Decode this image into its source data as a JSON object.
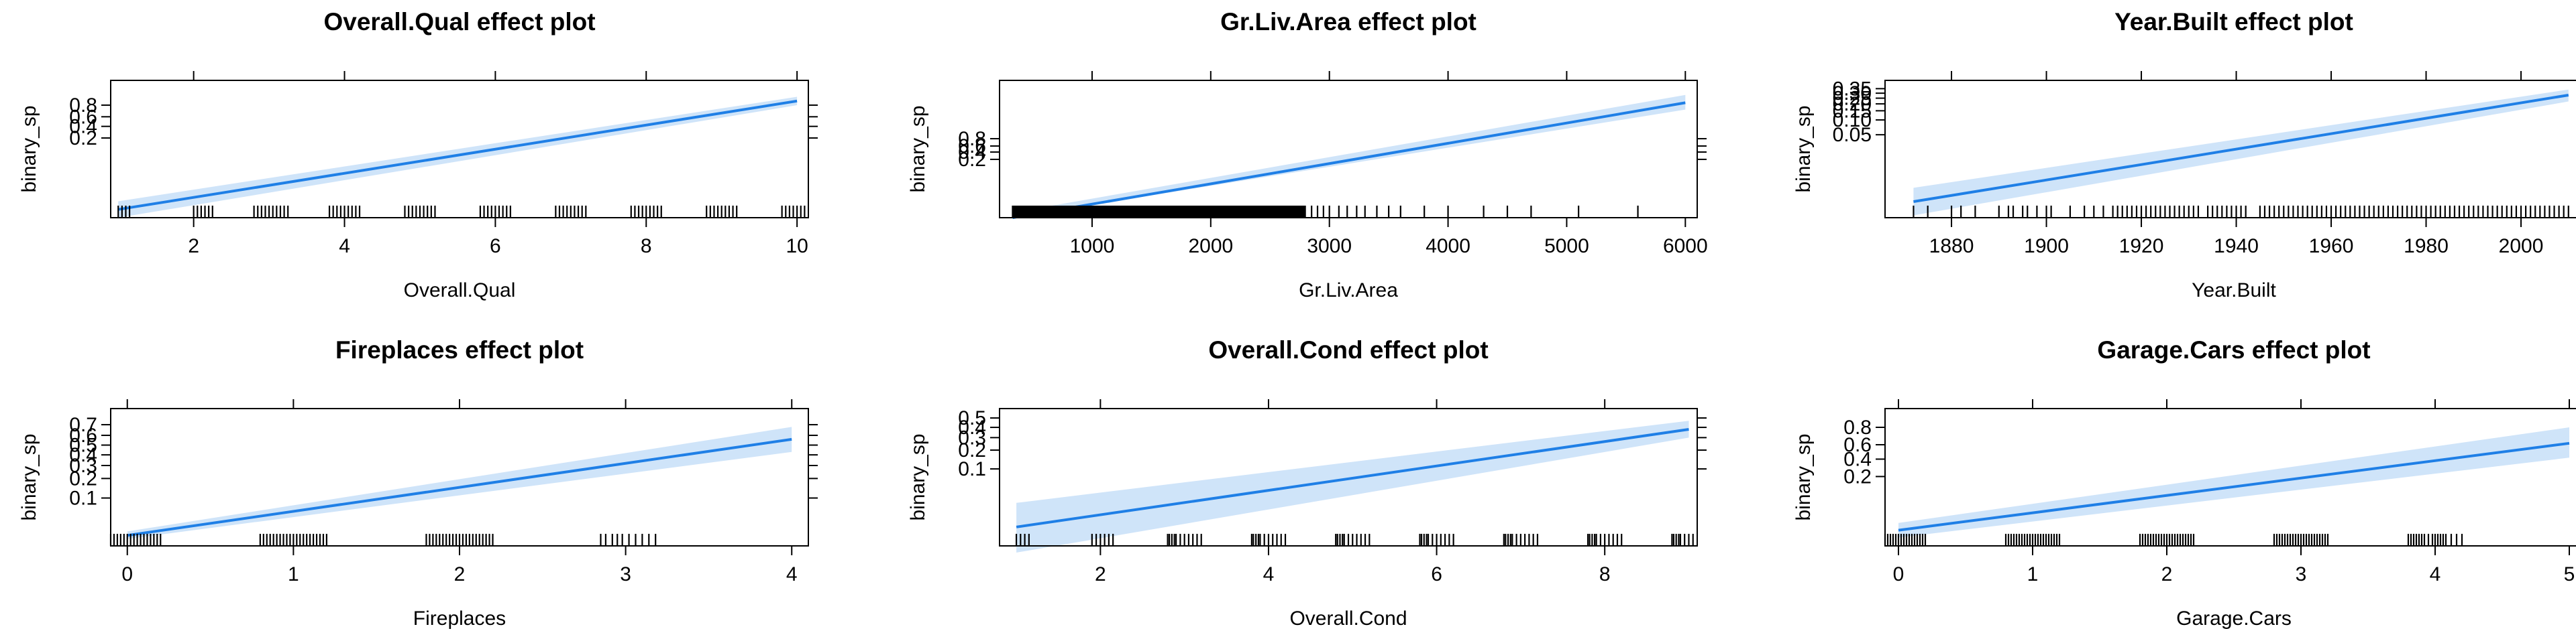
{
  "figure": {
    "line_color": "#1f7fe6",
    "band_color": "#cfe4f9",
    "rug_color": "#000000",
    "y_axis_label": "binary_sp"
  },
  "chart_data": [
    {
      "type": "line",
      "title": "Overall.Qual effect plot",
      "xlabel": "Overall.Qual",
      "ylabel": "binary_sp",
      "xlim": [
        0.9,
        10.15
      ],
      "x_ticks": [
        2,
        4,
        6,
        8,
        10
      ],
      "x_tick_labels": [
        "2",
        "4",
        "6",
        "8",
        "10"
      ],
      "y_scale": "logit",
      "ylim": [
        0.0003,
        0.97
      ],
      "y_ticks": [
        0.2,
        0.4,
        0.6,
        0.8
      ],
      "y_tick_labels": [
        "0.2",
        "0.4",
        "0.6",
        "0.8"
      ],
      "fit": {
        "x": [
          1,
          10
        ],
        "y": [
          0.0006,
          0.85
        ]
      },
      "band": {
        "x": [
          1,
          10
        ],
        "lower": [
          0.0003,
          0.8
        ],
        "upper": [
          0.0012,
          0.89
        ]
      },
      "rug": [
        1.0,
        1.05,
        1.1,
        1.15,
        2.0,
        2.05,
        2.1,
        2.15,
        2.2,
        2.25,
        2.8,
        2.85,
        2.9,
        2.95,
        3.0,
        3.05,
        3.1,
        3.15,
        3.2,
        3.25,
        3.8,
        3.85,
        3.9,
        3.95,
        4.0,
        4.05,
        4.1,
        4.15,
        4.2,
        4.8,
        4.85,
        4.9,
        4.95,
        5.0,
        5.05,
        5.1,
        5.15,
        5.2,
        5.8,
        5.85,
        5.9,
        5.95,
        6.0,
        6.05,
        6.1,
        6.15,
        6.2,
        6.8,
        6.85,
        6.9,
        6.95,
        7.0,
        7.05,
        7.1,
        7.15,
        7.2,
        7.8,
        7.85,
        7.9,
        7.95,
        8.0,
        8.05,
        8.1,
        8.15,
        8.2,
        8.8,
        8.85,
        8.9,
        8.95,
        9.0,
        9.05,
        9.1,
        9.15,
        9.2,
        9.8,
        9.85,
        9.9,
        9.95,
        10.0,
        10.05,
        10.1
      ]
    },
    {
      "type": "line",
      "title": "Gr.Liv.Area effect plot",
      "xlabel": "Gr.Liv.Area",
      "ylabel": "binary_sp",
      "xlim": [
        220,
        6100
      ],
      "x_ticks": [
        1000,
        2000,
        3000,
        4000,
        5000,
        6000
      ],
      "x_tick_labels": [
        "1000",
        "2000",
        "3000",
        "4000",
        "5000",
        "6000"
      ],
      "y_scale": "logit",
      "ylim": [
        0.0001,
        0.9999
      ],
      "y_ticks": [
        0.2,
        0.4,
        0.6,
        0.8
      ],
      "y_tick_labels": [
        "0.2",
        "0.4",
        "0.6",
        "0.8"
      ],
      "fit": {
        "x": [
          330,
          6000
        ],
        "y": [
          0.0001,
          0.998
        ]
      },
      "band": {
        "x": [
          330,
          6000
        ],
        "lower": [
          0.0001,
          0.995
        ],
        "upper": [
          0.0002,
          0.9993
        ]
      },
      "rug_ranges": [
        [
          330,
          2800,
          6
        ]
      ],
      "rug": [
        2850,
        2900,
        2950,
        3000,
        3080,
        3150,
        3230,
        3300,
        3400,
        3500,
        3600,
        3800,
        4000,
        4300,
        4500,
        4700,
        5100,
        5600
      ]
    },
    {
      "type": "line",
      "title": "Year.Built effect plot",
      "xlabel": "Year.Built",
      "ylabel": "binary_sp",
      "xlim": [
        1866,
        2013
      ],
      "x_ticks": [
        1880,
        1900,
        1920,
        1940,
        1960,
        1980,
        2000
      ],
      "x_tick_labels": [
        "1880",
        "1900",
        "1920",
        "1940",
        "1960",
        "1980",
        "2000"
      ],
      "y_scale": "logit",
      "ylim": [
        0.0008,
        0.45
      ],
      "y_ticks": [
        0.05,
        0.1,
        0.15,
        0.2,
        0.25,
        0.3,
        0.35
      ],
      "y_tick_labels": [
        "0.05",
        "0.10",
        "0.15",
        "0.20",
        "0.25",
        "0.30",
        "0.35"
      ],
      "fit": {
        "x": [
          1872,
          2010
        ],
        "y": [
          0.0018,
          0.28
        ]
      },
      "band": {
        "x": [
          1872,
          2010
        ],
        "lower": [
          0.0009,
          0.22
        ],
        "upper": [
          0.0036,
          0.34
        ]
      },
      "rug": [
        1872,
        1875,
        1880,
        1882,
        1885,
        1890,
        1892,
        1893,
        1895,
        1896,
        1898,
        1900,
        1901,
        1905,
        1908,
        1910,
        1912,
        1914,
        1915,
        1916,
        1917,
        1918,
        1919,
        1920,
        1921,
        1922,
        1923,
        1924,
        1925,
        1926,
        1927,
        1928,
        1929,
        1930,
        1931,
        1932,
        1934,
        1935,
        1936,
        1937,
        1938,
        1939,
        1940,
        1941,
        1942,
        1945,
        1946,
        1947,
        1948,
        1949,
        1950,
        1951,
        1952,
        1953,
        1954,
        1955,
        1956,
        1957,
        1958,
        1959,
        1960,
        1961,
        1962,
        1963,
        1964,
        1965,
        1966,
        1967,
        1968,
        1969,
        1970,
        1971,
        1972,
        1973,
        1974,
        1975,
        1976,
        1977,
        1978,
        1979,
        1980,
        1981,
        1982,
        1983,
        1984,
        1985,
        1986,
        1987,
        1988,
        1989,
        1990,
        1991,
        1992,
        1993,
        1994,
        1995,
        1996,
        1997,
        1998,
        1999,
        2000,
        2001,
        2002,
        2003,
        2004,
        2005,
        2006,
        2007,
        2008,
        2009,
        2010
      ]
    },
    {
      "type": "line",
      "title": "Fireplaces effect plot",
      "xlabel": "Fireplaces",
      "ylabel": "binary_sp",
      "xlim": [
        -0.1,
        4.1
      ],
      "x_ticks": [
        0,
        1,
        2,
        3,
        4
      ],
      "x_tick_labels": [
        "0",
        "1",
        "2",
        "3",
        "4"
      ],
      "y_scale": "logit",
      "ylim": [
        0.015,
        0.82
      ],
      "y_ticks": [
        0.1,
        0.2,
        0.3,
        0.4,
        0.5,
        0.6,
        0.7
      ],
      "y_tick_labels": [
        "0.1",
        "0.2",
        "0.3",
        "0.4",
        "0.5",
        "0.6",
        "0.7"
      ],
      "fit": {
        "x": [
          0,
          4
        ],
        "y": [
          0.023,
          0.56
        ]
      },
      "band": {
        "x": [
          0,
          4
        ],
        "lower": [
          0.02,
          0.43
        ],
        "upper": [
          0.027,
          0.68
        ]
      },
      "rug": [
        -0.1,
        -0.08,
        -0.06,
        -0.04,
        -0.02,
        0.0,
        0.02,
        0.04,
        0.06,
        0.08,
        0.1,
        0.12,
        0.14,
        0.16,
        0.18,
        0.2,
        0.8,
        0.82,
        0.84,
        0.86,
        0.88,
        0.9,
        0.92,
        0.94,
        0.96,
        0.98,
        1.0,
        1.02,
        1.04,
        1.06,
        1.08,
        1.1,
        1.12,
        1.14,
        1.16,
        1.18,
        1.2,
        1.8,
        1.82,
        1.84,
        1.86,
        1.88,
        1.9,
        1.92,
        1.94,
        1.96,
        1.98,
        2.0,
        2.02,
        2.04,
        2.06,
        2.08,
        2.1,
        2.12,
        2.14,
        2.16,
        2.18,
        2.2,
        2.85,
        2.88,
        2.92,
        2.95,
        2.98,
        3.02,
        3.06,
        3.1,
        3.14,
        3.18
      ]
    },
    {
      "type": "line",
      "title": "Overall.Cond effect plot",
      "xlabel": "Overall.Cond",
      "ylabel": "binary_sp",
      "xlim": [
        0.8,
        9.1
      ],
      "x_ticks": [
        2,
        4,
        6,
        8
      ],
      "x_tick_labels": [
        "2",
        "4",
        "6",
        "8"
      ],
      "y_scale": "logit",
      "ylim": [
        0.004,
        0.6
      ],
      "y_ticks": [
        0.1,
        0.2,
        0.3,
        0.4,
        0.5
      ],
      "y_tick_labels": [
        "0.1",
        "0.2",
        "0.3",
        "0.4",
        "0.5"
      ],
      "fit": {
        "x": [
          1,
          9
        ],
        "y": [
          0.009,
          0.38
        ]
      },
      "band": {
        "x": [
          1,
          9
        ],
        "lower": [
          0.003,
          0.3
        ],
        "upper": [
          0.025,
          0.47
        ]
      },
      "rug": [
        1.0,
        1.05,
        1.1,
        1.15,
        1.9,
        1.95,
        2.0,
        2.05,
        2.1,
        2.15,
        2.8,
        2.82,
        2.85,
        2.88,
        2.9,
        2.95,
        3.0,
        3.05,
        3.1,
        3.15,
        3.2,
        3.8,
        3.82,
        3.85,
        3.88,
        3.9,
        3.95,
        4.0,
        4.05,
        4.1,
        4.15,
        4.2,
        4.8,
        4.82,
        4.85,
        4.88,
        4.9,
        4.95,
        5.0,
        5.05,
        5.1,
        5.15,
        5.2,
        5.8,
        5.82,
        5.85,
        5.88,
        5.9,
        5.95,
        6.0,
        6.05,
        6.1,
        6.15,
        6.2,
        6.8,
        6.82,
        6.85,
        6.88,
        6.9,
        6.95,
        7.0,
        7.05,
        7.1,
        7.15,
        7.2,
        7.8,
        7.82,
        7.85,
        7.88,
        7.9,
        7.95,
        8.0,
        8.05,
        8.1,
        8.15,
        8.2,
        8.8,
        8.82,
        8.85,
        8.88,
        8.9,
        8.95,
        9.0,
        9.05
      ]
    },
    {
      "type": "line",
      "title": "Garage.Cars effect plot",
      "xlabel": "Garage.Cars",
      "ylabel": "binary_sp",
      "xlim": [
        -0.1,
        5.1
      ],
      "x_ticks": [
        0,
        1,
        2,
        3,
        4,
        5
      ],
      "x_tick_labels": [
        "0",
        "1",
        "2",
        "3",
        "4",
        "5"
      ],
      "y_scale": "logit",
      "ylim": [
        0.005,
        0.92
      ],
      "y_ticks": [
        0.2,
        0.4,
        0.6,
        0.8
      ],
      "y_tick_labels": [
        "0.2",
        "0.4",
        "0.6",
        "0.8"
      ],
      "fit": {
        "x": [
          0,
          5
        ],
        "y": [
          0.012,
          0.62
        ]
      },
      "band": {
        "x": [
          0,
          5
        ],
        "lower": [
          0.008,
          0.42
        ],
        "upper": [
          0.018,
          0.8
        ]
      },
      "rug": [
        -0.1,
        -0.08,
        -0.06,
        -0.04,
        -0.02,
        0.0,
        0.02,
        0.04,
        0.06,
        0.08,
        0.1,
        0.12,
        0.14,
        0.16,
        0.18,
        0.2,
        0.8,
        0.82,
        0.84,
        0.86,
        0.88,
        0.9,
        0.92,
        0.94,
        0.96,
        0.98,
        1.0,
        1.02,
        1.04,
        1.06,
        1.08,
        1.1,
        1.12,
        1.14,
        1.16,
        1.18,
        1.2,
        1.8,
        1.82,
        1.84,
        1.86,
        1.88,
        1.9,
        1.92,
        1.94,
        1.96,
        1.98,
        2.0,
        2.02,
        2.04,
        2.06,
        2.08,
        2.1,
        2.12,
        2.14,
        2.16,
        2.18,
        2.2,
        2.8,
        2.82,
        2.84,
        2.86,
        2.88,
        2.9,
        2.92,
        2.94,
        2.96,
        2.98,
        3.0,
        3.02,
        3.04,
        3.06,
        3.08,
        3.1,
        3.12,
        3.14,
        3.16,
        3.18,
        3.2,
        3.8,
        3.82,
        3.84,
        3.86,
        3.88,
        3.9,
        3.92,
        3.95,
        3.98,
        4.0,
        4.02,
        4.04,
        4.06,
        4.08,
        4.12,
        4.16,
        4.2
      ]
    }
  ]
}
